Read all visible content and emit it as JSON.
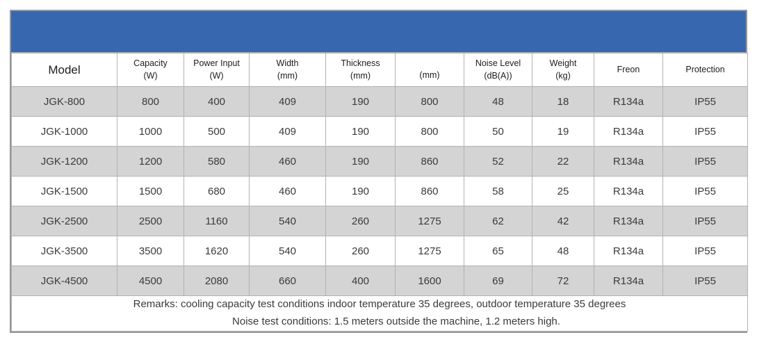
{
  "banner": {
    "text": ""
  },
  "colors": {
    "banner_blue": "#3767ae",
    "stripe_gray": "#d4d4d4",
    "inner_border": "#b2b2b2",
    "outer_border": "#979797"
  },
  "table": {
    "columns": [
      {
        "title": "Model",
        "unit": ""
      },
      {
        "title": "Capacity",
        "unit": "(W)"
      },
      {
        "title": "Power Input",
        "unit": "(W)"
      },
      {
        "title": "Width",
        "unit": "(mm)"
      },
      {
        "title": "Thickness",
        "unit": "(mm)"
      },
      {
        "title": "",
        "unit": "(mm)"
      },
      {
        "title": "Noise Level",
        "unit": "(dB(A))"
      },
      {
        "title": "Weight",
        "unit": "(kg)"
      },
      {
        "title": "Freon",
        "unit": ""
      },
      {
        "title": "Protection",
        "unit": ""
      }
    ],
    "rows": [
      [
        "JGK-800",
        "800",
        "400",
        "409",
        "190",
        "800",
        "48",
        "18",
        "R134a",
        "IP55"
      ],
      [
        "JGK-1000",
        "1000",
        "500",
        "409",
        "190",
        "800",
        "50",
        "19",
        "R134a",
        "IP55"
      ],
      [
        "JGK-1200",
        "1200",
        "580",
        "460",
        "190",
        "860",
        "52",
        "22",
        "R134a",
        "IP55"
      ],
      [
        "JGK-1500",
        "1500",
        "680",
        "460",
        "190",
        "860",
        "58",
        "25",
        "R134a",
        "IP55"
      ],
      [
        "JGK-2500",
        "2500",
        "1160",
        "540",
        "260",
        "1275",
        "62",
        "42",
        "R134a",
        "IP55"
      ],
      [
        "JGK-3500",
        "3500",
        "1620",
        "540",
        "260",
        "1275",
        "65",
        "48",
        "R134a",
        "IP55"
      ],
      [
        "JGK-4500",
        "4500",
        "2080",
        "660",
        "400",
        "1600",
        "69",
        "72",
        "R134a",
        "IP55"
      ]
    ],
    "remarks_line1": "Remarks: cooling capacity test conditions indoor temperature 35 degrees, outdoor temperature 35 degrees",
    "remarks_line2": "Noise test conditions: 1.5 meters outside the machine, 1.2 meters high."
  }
}
